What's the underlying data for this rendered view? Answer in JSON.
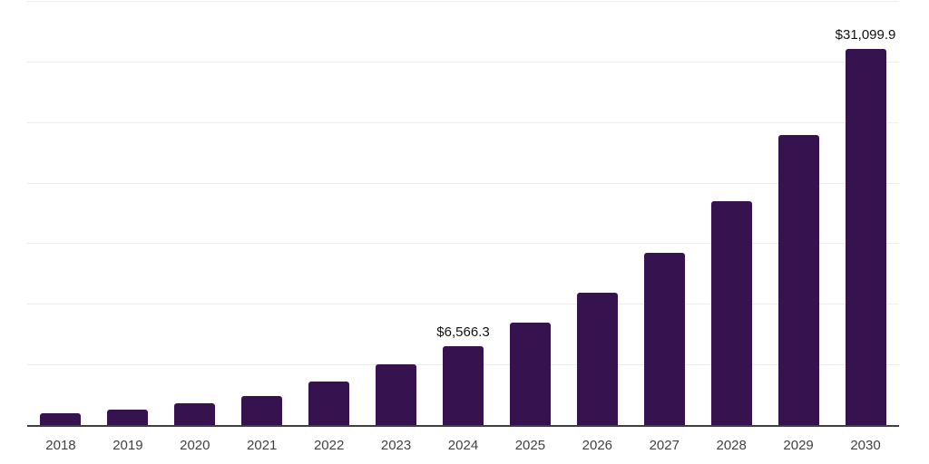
{
  "chart_data": {
    "type": "bar",
    "title": "",
    "xlabel": "",
    "ylabel": "",
    "categories": [
      "2018",
      "2019",
      "2020",
      "2021",
      "2022",
      "2023",
      "2024",
      "2025",
      "2026",
      "2027",
      "2028",
      "2029",
      "2030"
    ],
    "values": [
      1040,
      1360,
      1850,
      2480,
      3630,
      5110,
      6566.3,
      8510,
      11030,
      14290,
      18520,
      24010,
      31099.9
    ],
    "data_labels": [
      "",
      "",
      "",
      "",
      "",
      "",
      "$6,566.3",
      "",
      "",
      "",
      "",
      "",
      "$31,099.9"
    ],
    "ylim": [
      0,
      35000
    ],
    "gridline_step": 5000,
    "grid": "horizontal-only",
    "legend": "none",
    "y_tick_labels_shown": false
  },
  "style": {
    "bar_color": "#36124F",
    "grid_color": "#ededed",
    "axis_color": "#3f3f3f",
    "tick_label_color": "#414141",
    "data_label_color": "#111111",
    "background_color": "#ffffff"
  }
}
